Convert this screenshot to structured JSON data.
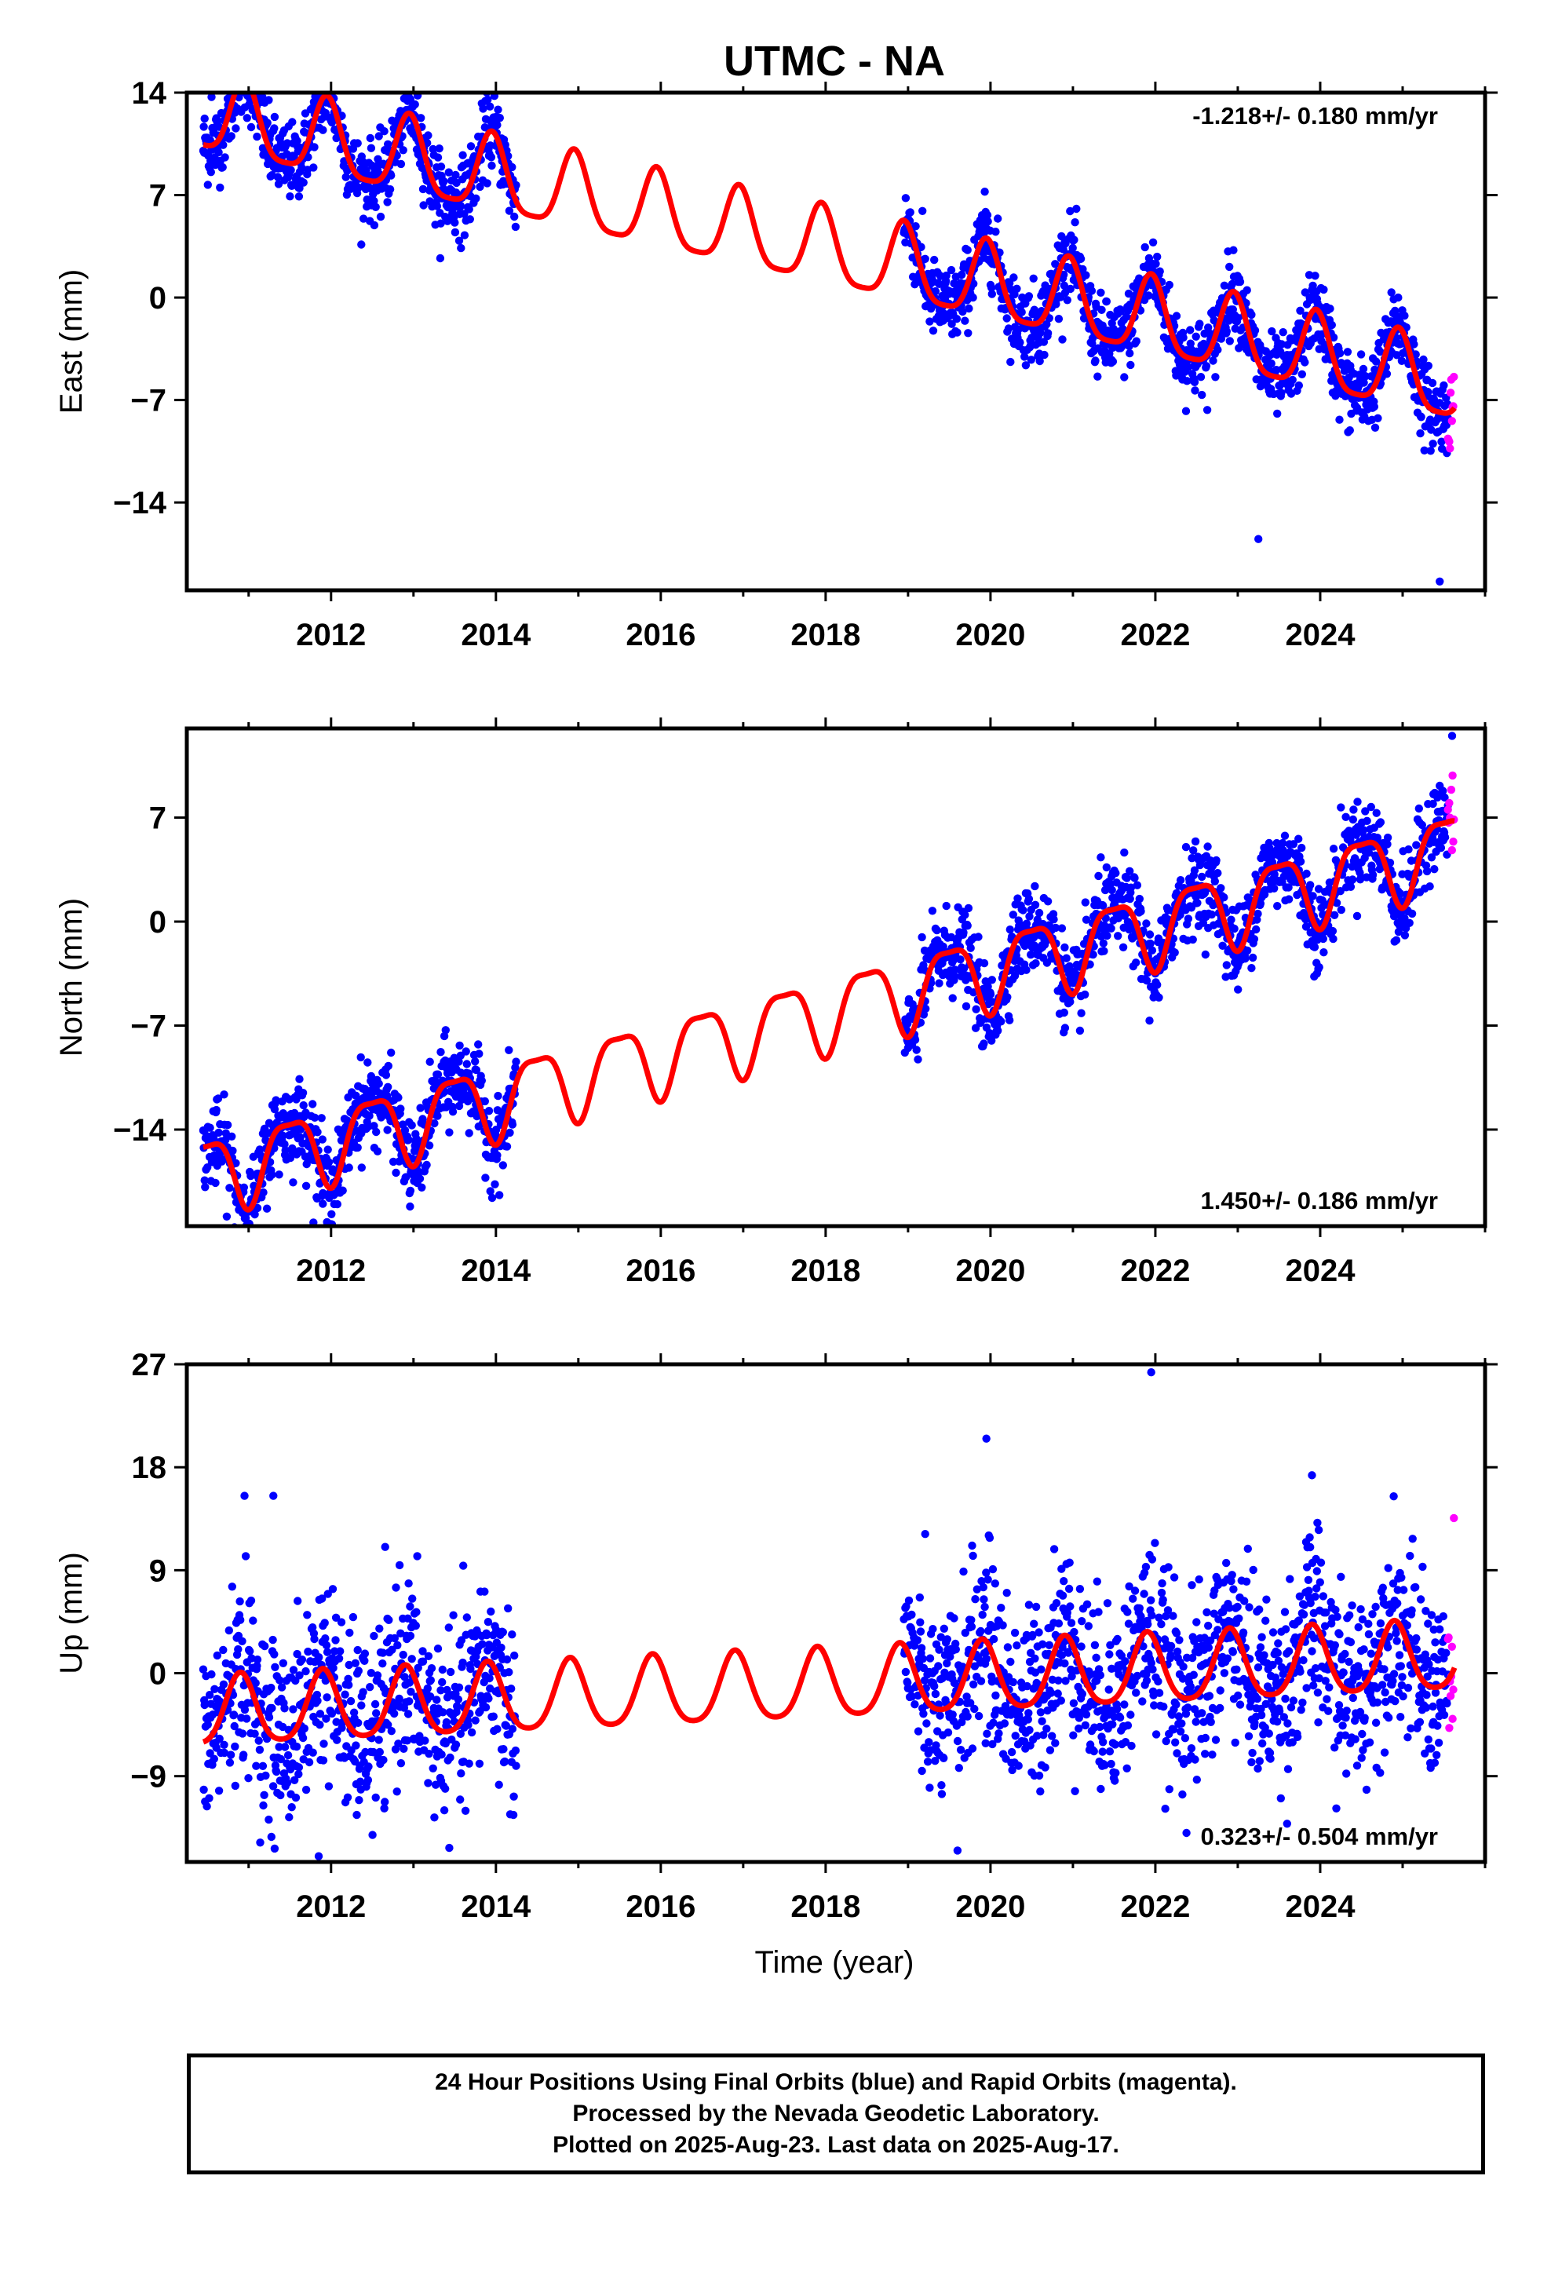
{
  "chart_data": {
    "title": "UTMC - NA",
    "type": "scatter",
    "colors": {
      "final": "#0000ff",
      "rapid": "#ff00ff",
      "model": "#ff0000",
      "axis": "#000000"
    },
    "xlabel": "Time (year)",
    "x_ticks": [
      2012,
      2014,
      2016,
      2018,
      2020,
      2022,
      2024
    ],
    "x_range": [
      2010.25,
      2026.0
    ],
    "data_segments": [
      [
        2010.45,
        2014.25
      ],
      [
        2018.95,
        2025.62
      ]
    ],
    "rapid_range": [
      2025.55,
      2025.63
    ],
    "panels": [
      {
        "ylabel": "East (mm)",
        "y_range": [
          -20,
          14
        ],
        "y_ticks": [
          14,
          7,
          0,
          -7,
          -14
        ],
        "tick_labels": [
          "14",
          "7",
          "0",
          "−7",
          "−14"
        ],
        "rate": "-1.218+/- 0.180 mm/yr",
        "rate_position": "top-right",
        "model": {
          "offset": 2.02,
          "slope": -1.218,
          "pre_offset": 0.0,
          "post_offset": 5.0,
          "annual_amp": 2.6,
          "annual_peak": 0.95,
          "semiannual_amp": 0.6,
          "semiannual_peak": 0.45
        },
        "scatter_sd": 1.3,
        "outliers": [
          {
            "x": 2025.45,
            "y": -19.4
          },
          {
            "x": 2023.25,
            "y": -16.5
          },
          {
            "x": 2010.55,
            "y": 13.7
          }
        ]
      },
      {
        "ylabel": "North (mm)",
        "y_range": [
          -20.5,
          13
        ],
        "y_ticks": [
          7,
          0,
          -7,
          -14
        ],
        "tick_labels": [
          "7",
          "0",
          "−7",
          "−14"
        ],
        "rate": "1.450+/- 0.186 mm/yr",
        "rate_position": "bottom-right",
        "model": {
          "offset": -4.6,
          "slope": 1.45,
          "pre_offset": 0.0,
          "post_offset": 0.0,
          "annual_amp": 2.5,
          "annual_peak": 0.5,
          "semiannual_amp": 0.7,
          "semiannual_peak": 0.25
        },
        "scatter_sd": 1.4,
        "outliers": [
          {
            "x": 2019.0,
            "y": -8.5
          },
          {
            "x": 2011.9,
            "y": -19.0
          },
          {
            "x": 2025.6,
            "y": 12.5
          }
        ]
      },
      {
        "ylabel": "Up (mm)",
        "y_range": [
          -16.5,
          27
        ],
        "y_ticks": [
          27,
          18,
          9,
          0,
          -9
        ],
        "tick_labels": [
          "27",
          "18",
          "9",
          "0",
          "−9"
        ],
        "rate": "0.323+/- 0.504 mm/yr",
        "rate_position": "bottom-right",
        "model": {
          "offset": -0.8,
          "slope": 0.323,
          "pre_offset": 0.0,
          "post_offset": 0.0,
          "annual_amp": 3.0,
          "annual_peak": 0.9,
          "semiannual_amp": 0.5,
          "semiannual_peak": 0.4
        },
        "scatter_sd": 4.0,
        "outliers": [
          {
            "x": 2021.95,
            "y": 26.3
          },
          {
            "x": 2019.95,
            "y": 20.5
          },
          {
            "x": 2023.9,
            "y": 17.3
          },
          {
            "x": 2011.3,
            "y": 15.5
          },
          {
            "x": 2010.95,
            "y": 15.5
          },
          {
            "x": 2011.85,
            "y": -16.0
          },
          {
            "x": 2019.6,
            "y": -15.5
          }
        ]
      }
    ]
  },
  "footer": {
    "line1": "24 Hour Positions Using Final Orbits (blue) and Rapid Orbits (magenta).",
    "line2": "Processed by the Nevada Geodetic Laboratory.",
    "line3": "Plotted on 2025-Aug-23. Last data on 2025-Aug-17."
  }
}
